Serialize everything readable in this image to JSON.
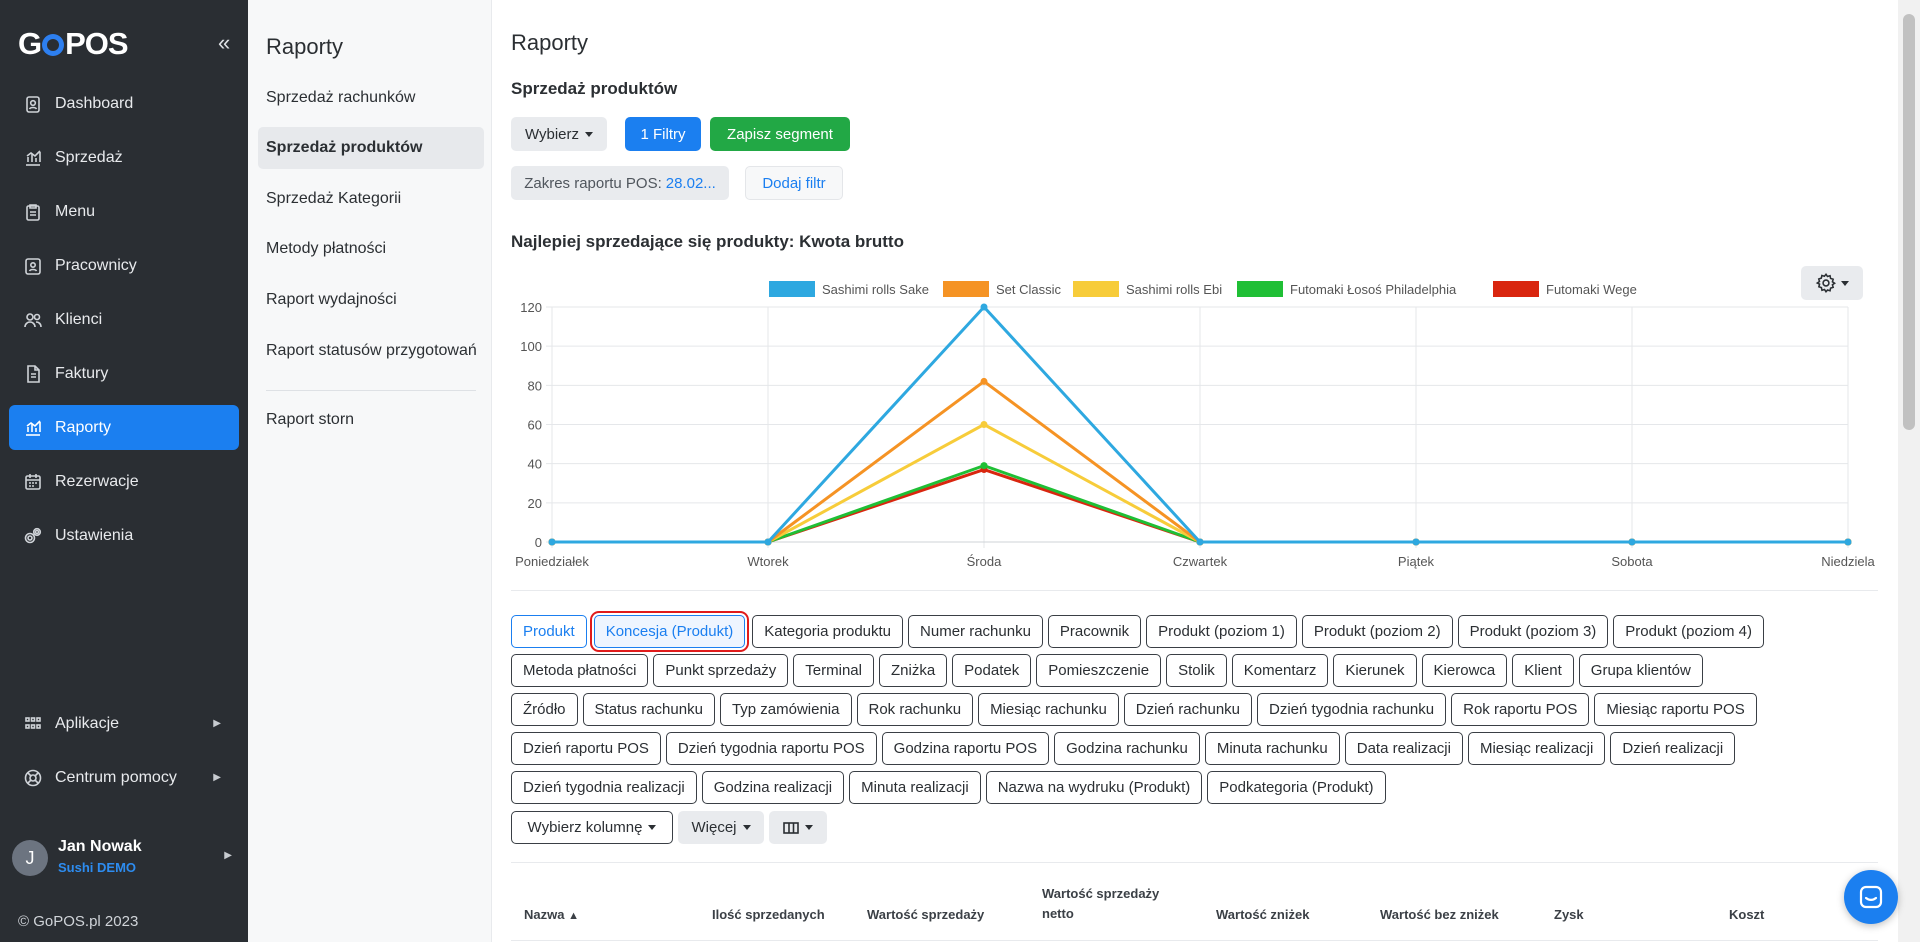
{
  "brand": {
    "logo_text_1": "G",
    "logo_text_2": "POS",
    "collapse_glyph": "«"
  },
  "sidebar": {
    "items": [
      {
        "label": "Dashboard",
        "icon": "badge-icon"
      },
      {
        "label": "Sprzedaż",
        "icon": "chart-icon"
      },
      {
        "label": "Menu",
        "icon": "clipboard-icon"
      },
      {
        "label": "Pracownicy",
        "icon": "id-card-icon"
      },
      {
        "label": "Klienci",
        "icon": "users-icon"
      },
      {
        "label": "Faktury",
        "icon": "invoice-icon"
      },
      {
        "label": "Raporty",
        "icon": "chart-icon",
        "active": true
      },
      {
        "label": "Rezerwacje",
        "icon": "calendar-icon"
      },
      {
        "label": "Ustawienia",
        "icon": "gear-icon"
      }
    ],
    "bottom_items": [
      {
        "label": "Aplikacje",
        "icon": "apps-icon"
      },
      {
        "label": "Centrum pomocy",
        "icon": "help-icon"
      }
    ],
    "user": {
      "initial": "J",
      "name": "Jan Nowak",
      "org": "Sushi DEMO"
    },
    "copyright": "© GoPOS.pl 2023"
  },
  "subnav": {
    "title": "Raporty",
    "items": [
      "Sprzedaż rachunków",
      "Sprzedaż produktów",
      "Sprzedaż Kategorii",
      "Metody płatności",
      "Raport wydajności",
      "Raport statusów przygotowań",
      "Raport storn"
    ],
    "active_index": 1
  },
  "main": {
    "title": "Raporty",
    "section_title": "Sprzedaż produktów",
    "toolbar": {
      "select_label": "Wybierz",
      "filters_label": "1 Filtry",
      "save_segment_label": "Zapisz segment"
    },
    "filters": {
      "range_label": "Zakres raportu POS:",
      "range_value": "28.02...",
      "add_filter_label": "Dodaj filtr"
    },
    "chart_title": "Najlepiej sprzedające się produkty: Kwota brutto",
    "group_chips": [
      "Produkt",
      "Koncesja (Produkt)",
      "Kategoria produktu",
      "Numer rachunku",
      "Pracownik",
      "Produkt (poziom 1)",
      "Produkt (poziom 2)",
      "Produkt (poziom 3)",
      "Produkt (poziom 4)",
      "Metoda płatności",
      "Punkt sprzedaży",
      "Terminal",
      "Zniżka",
      "Podatek",
      "Pomieszczenie",
      "Stolik",
      "Komentarz",
      "Kierunek",
      "Kierowca",
      "Klient",
      "Grupa klientów",
      "Źródło",
      "Status rachunku",
      "Typ zamówienia",
      "Rok rachunku",
      "Miesiąc rachunku",
      "Dzień rachunku",
      "Dzień tygodnia rachunku",
      "Rok raportu POS",
      "Miesiąc raportu POS",
      "Dzień raportu POS",
      "Dzień tygodnia raportu POS",
      "Godzina raportu POS",
      "Godzina rachunku",
      "Minuta rachunku",
      "Data realizacji",
      "Miesiąc realizacji",
      "Dzień realizacji",
      "Dzień tygodnia realizacji",
      "Godzina realizacji",
      "Minuta realizacji",
      "Nazwa na wydruku (Produkt)",
      "Podkategoria (Produkt)"
    ],
    "table_controls": {
      "choose_column_label": "Wybierz kolumnę",
      "more_label": "Więcej"
    },
    "table_headers": [
      "Nazwa",
      "Ilość sprzedanych",
      "Wartość sprzedaży",
      "Wartość sprzedaży netto",
      "Wartość zniżek",
      "Wartość bez zniżek",
      "Zysk",
      "Koszt"
    ]
  },
  "colors": {
    "sidebar_bg": "#2a2e33",
    "primary": "#1b7ff0",
    "success": "#22a845",
    "highlight_frame": "#e01b1b"
  },
  "chart_data": {
    "type": "line",
    "title": "",
    "x": [
      "Poniedziałek",
      "Wtorek",
      "Środa",
      "Czwartek",
      "Piątek",
      "Sobota",
      "Niedziela"
    ],
    "ylim": [
      0,
      120
    ],
    "yticks": [
      0,
      20,
      40,
      60,
      80,
      100,
      120
    ],
    "grid": true,
    "legend_position": "top",
    "series": [
      {
        "name": "Sashimi rolls Sake",
        "color": "#2ea8e0",
        "values": [
          0,
          0,
          120,
          0,
          0,
          0,
          0
        ]
      },
      {
        "name": "Set Classic",
        "color": "#f59324",
        "values": [
          0,
          0,
          82,
          0,
          0,
          0,
          0
        ]
      },
      {
        "name": "Sashimi rolls Ebi",
        "color": "#f7cc3a",
        "values": [
          0,
          0,
          60,
          0,
          0,
          0,
          0
        ]
      },
      {
        "name": "Futomaki Łosoś Philadelphia",
        "color": "#1fbf35",
        "values": [
          0,
          0,
          39,
          0,
          0,
          0,
          0
        ]
      },
      {
        "name": "Futomaki Wege",
        "color": "#d9260f",
        "values": [
          0,
          0,
          37,
          0,
          0,
          0,
          0
        ]
      }
    ]
  }
}
